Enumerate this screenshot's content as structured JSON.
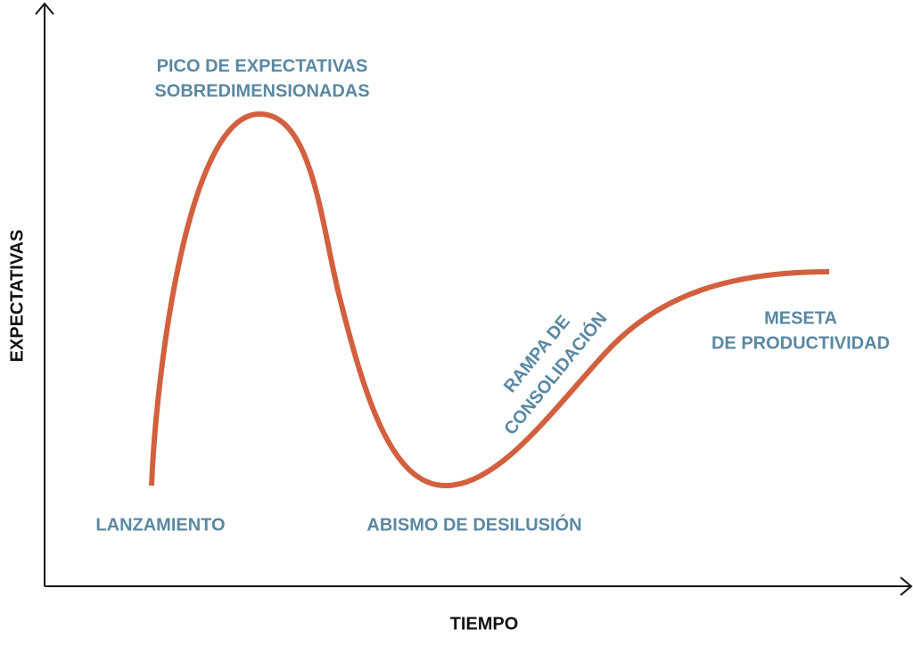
{
  "axes": {
    "y_label": "EXPECTATIVAS",
    "x_label": "TIEMPO"
  },
  "phases": [
    {
      "lines": [
        "LANZAMIENTO"
      ]
    },
    {
      "lines": [
        "PICO DE EXPECTATIVAS",
        "SOBREDIMENSIONADAS"
      ]
    },
    {
      "lines": [
        "ABISMO DE DESILUSIÓN"
      ]
    },
    {
      "lines": [
        "RAMPA DE",
        "CONSOLIDACIÓN"
      ]
    },
    {
      "lines": [
        "MESETA",
        "DE PRODUCTIVIDAD"
      ]
    }
  ]
}
